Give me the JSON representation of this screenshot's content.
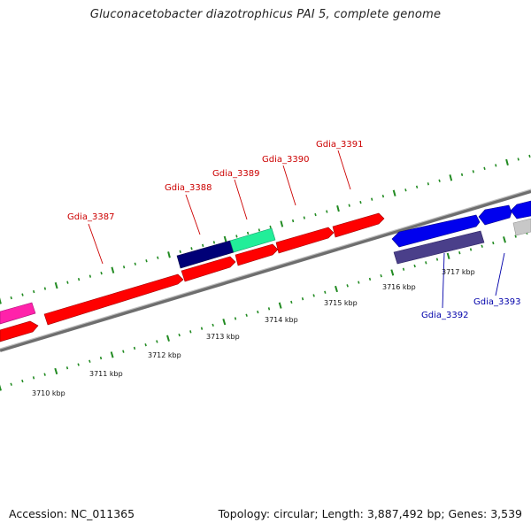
{
  "map": {
    "title": "Gluconacetobacter diazotrophicus PAI 5, complete genome",
    "accession": "Accession: NC_011365",
    "summary": "Topology: circular; Length: 3,887,492 bp; Genes: 3,539"
  },
  "colors": {
    "forward_cds": "#ff0000",
    "reverse_cds": "#0000ee",
    "backbone": "#888888",
    "ticks": "#228b22",
    "label_forward": "#cc0000",
    "label_reverse": "#0000aa"
  },
  "scale_labels": [
    "3710 kbp",
    "3711 kbp",
    "3712 kbp",
    "3713 kbp",
    "3714 kbp",
    "3715 kbp",
    "3716 kbp",
    "3717 kbp"
  ],
  "gene_labels": {
    "forward": [
      "Gdia_3387",
      "Gdia_3388",
      "Gdia_3389",
      "Gdia_3390",
      "Gdia_3391"
    ],
    "reverse": [
      "Gdia_3392",
      "Gdia_3393"
    ]
  }
}
